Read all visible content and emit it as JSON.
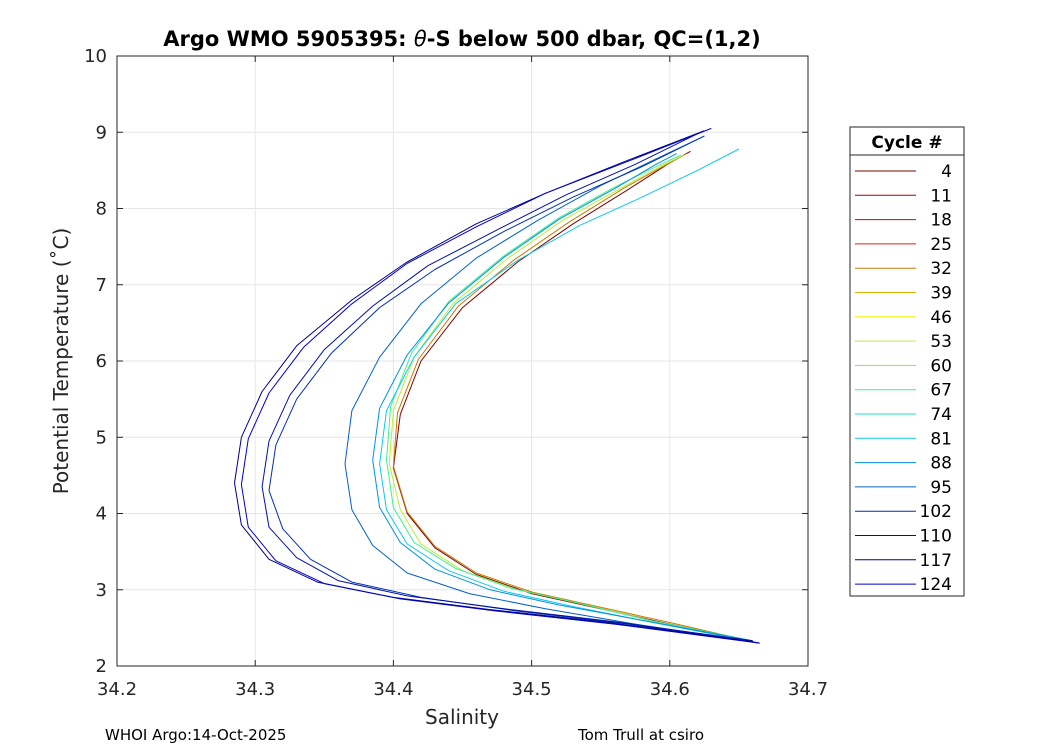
{
  "chart_data": {
    "type": "line",
    "title_prefix": "Argo WMO 5905395: ",
    "title_theta": "θ",
    "title_suffix": "-S below 500 dbar,  QC=(1,2)",
    "xlabel": "Salinity",
    "ylabel": "Potential Temperature (˚C)",
    "xlim": [
      34.2,
      34.7
    ],
    "ylim": [
      2,
      10
    ],
    "xticks": [
      "34.2",
      "34.3",
      "34.4",
      "34.5",
      "34.6",
      "34.7"
    ],
    "yticks": [
      "2",
      "3",
      "4",
      "5",
      "6",
      "7",
      "8",
      "9",
      "10"
    ],
    "grid": true,
    "legend": {
      "title": "Cycle #",
      "position": "right-outside",
      "entries": [
        {
          "label": "4",
          "color": "#800000"
        },
        {
          "label": "11",
          "color": "#a80000"
        },
        {
          "label": "18",
          "color": "#d00000"
        },
        {
          "label": "25",
          "color": "#f01010"
        },
        {
          "label": "32",
          "color": "#c87800"
        },
        {
          "label": "39",
          "color": "#e0b000"
        },
        {
          "label": "46",
          "color": "#f0f000"
        },
        {
          "label": "53",
          "color": "#b8f030"
        },
        {
          "label": "60",
          "color": "#70f050"
        },
        {
          "label": "67",
          "color": "#40f090"
        },
        {
          "label": "74",
          "color": "#20e0c0"
        },
        {
          "label": "81",
          "color": "#10c8f0"
        },
        {
          "label": "88",
          "color": "#0090e0"
        },
        {
          "label": "95",
          "color": "#0060c8"
        },
        {
          "label": "102",
          "color": "#0030b0"
        },
        {
          "label": "110",
          "color": "#0010a0"
        },
        {
          "label": "117",
          "color": "#000088"
        },
        {
          "label": "124",
          "color": "#0000c8"
        }
      ]
    },
    "series": [
      {
        "name": "4",
        "color": "#800000",
        "salinity": [
          34.665,
          34.6,
          34.55,
          34.5,
          34.46,
          34.43,
          34.41,
          34.4,
          34.405,
          34.42,
          34.45,
          34.49,
          34.53,
          34.57,
          34.6,
          34.615
        ],
        "theta": [
          2.3,
          2.55,
          2.75,
          2.95,
          3.2,
          3.55,
          4.0,
          4.6,
          5.3,
          6.0,
          6.7,
          7.3,
          7.8,
          8.25,
          8.6,
          8.75
        ]
      },
      {
        "name": "32",
        "color": "#c87800",
        "salinity": [
          34.66,
          34.6,
          34.55,
          34.5,
          34.46,
          34.43,
          34.41,
          34.4,
          34.403,
          34.418,
          34.447,
          34.487,
          34.527,
          34.567,
          34.598,
          34.612
        ],
        "theta": [
          2.32,
          2.57,
          2.77,
          2.97,
          3.22,
          3.57,
          4.02,
          4.62,
          5.32,
          6.02,
          6.72,
          7.32,
          7.82,
          8.27,
          8.58,
          8.72
        ]
      },
      {
        "name": "53",
        "color": "#b8f030",
        "salinity": [
          34.66,
          34.59,
          34.54,
          34.49,
          34.45,
          34.42,
          34.405,
          34.397,
          34.4,
          34.415,
          34.443,
          34.483,
          34.523,
          34.563,
          34.593,
          34.61
        ],
        "theta": [
          2.32,
          2.58,
          2.8,
          3.0,
          3.25,
          3.6,
          4.05,
          4.65,
          5.35,
          6.05,
          6.75,
          7.35,
          7.85,
          8.25,
          8.55,
          8.7
        ]
      },
      {
        "name": "67",
        "color": "#40f090",
        "salinity": [
          34.66,
          34.585,
          34.535,
          34.485,
          34.445,
          34.415,
          34.4,
          34.395,
          34.398,
          34.413,
          34.44,
          34.48,
          34.52,
          34.56,
          34.59,
          34.608
        ],
        "theta": [
          2.33,
          2.6,
          2.82,
          3.02,
          3.28,
          3.62,
          4.08,
          4.7,
          5.4,
          6.1,
          6.78,
          7.38,
          7.88,
          8.28,
          8.55,
          8.7
        ]
      },
      {
        "name": "81",
        "color": "#10c8f0",
        "salinity": [
          34.665,
          34.585,
          34.53,
          34.48,
          34.44,
          34.41,
          34.395,
          34.39,
          34.395,
          34.415,
          34.445,
          34.49,
          34.535,
          34.58,
          34.62,
          34.65
        ],
        "theta": [
          2.3,
          2.58,
          2.78,
          2.98,
          3.25,
          3.6,
          4.05,
          4.65,
          5.35,
          6.05,
          6.75,
          7.32,
          7.78,
          8.15,
          8.5,
          8.78
        ]
      },
      {
        "name": "88",
        "color": "#0090e0",
        "salinity": [
          34.66,
          34.58,
          34.52,
          34.47,
          34.43,
          34.405,
          34.39,
          34.385,
          34.39,
          34.41,
          34.44,
          34.48,
          34.52,
          34.56,
          34.59,
          34.605
        ],
        "theta": [
          2.33,
          2.6,
          2.8,
          3.0,
          3.27,
          3.62,
          4.08,
          4.7,
          5.38,
          6.08,
          6.76,
          7.36,
          7.86,
          8.26,
          8.58,
          8.72
        ]
      },
      {
        "name": "95",
        "color": "#0060c8",
        "salinity": [
          34.665,
          34.575,
          34.51,
          34.455,
          34.41,
          34.385,
          34.37,
          34.365,
          34.37,
          34.39,
          34.42,
          34.46,
          34.505,
          34.55,
          34.59,
          34.625
        ],
        "theta": [
          2.3,
          2.55,
          2.75,
          2.95,
          3.22,
          3.58,
          4.05,
          4.65,
          5.35,
          6.05,
          6.75,
          7.35,
          7.85,
          8.3,
          8.65,
          8.95
        ]
      },
      {
        "name": "102",
        "color": "#0030b0",
        "salinity": [
          34.665,
          34.57,
          34.49,
          34.42,
          34.37,
          34.34,
          34.32,
          34.31,
          34.315,
          34.33,
          34.355,
          34.39,
          34.43,
          34.48,
          34.53,
          34.58,
          34.625
        ],
        "theta": [
          2.3,
          2.55,
          2.72,
          2.9,
          3.1,
          3.4,
          3.8,
          4.3,
          4.9,
          5.5,
          6.1,
          6.7,
          7.2,
          7.7,
          8.15,
          8.55,
          8.95
        ]
      },
      {
        "name": "110",
        "color": "#0010a0",
        "salinity": [
          34.66,
          34.56,
          34.48,
          34.41,
          34.36,
          34.33,
          34.31,
          34.305,
          34.31,
          34.325,
          34.35,
          34.385,
          34.425,
          34.475,
          34.525,
          34.575,
          34.62
        ],
        "theta": [
          2.33,
          2.58,
          2.75,
          2.92,
          3.12,
          3.42,
          3.82,
          4.35,
          4.95,
          5.55,
          6.15,
          6.72,
          7.25,
          7.72,
          8.18,
          8.58,
          8.98
        ]
      },
      {
        "name": "117",
        "color": "#000088",
        "salinity": [
          34.66,
          34.555,
          34.47,
          34.4,
          34.345,
          34.31,
          34.29,
          34.285,
          34.29,
          34.305,
          34.33,
          34.37,
          34.41,
          34.46,
          34.51,
          34.565,
          34.625
        ],
        "theta": [
          2.32,
          2.57,
          2.74,
          2.9,
          3.1,
          3.4,
          3.85,
          4.4,
          5.0,
          5.6,
          6.2,
          6.8,
          7.3,
          7.8,
          8.2,
          8.6,
          9.02
        ]
      },
      {
        "name": "124",
        "color": "#0000c8",
        "salinity": [
          34.665,
          34.56,
          34.475,
          34.405,
          34.35,
          34.315,
          34.295,
          34.29,
          34.295,
          34.31,
          34.335,
          34.37,
          34.41,
          34.46,
          34.51,
          34.57,
          34.63
        ],
        "theta": [
          2.3,
          2.55,
          2.72,
          2.88,
          3.08,
          3.38,
          3.82,
          4.38,
          4.98,
          5.58,
          6.18,
          6.75,
          7.28,
          7.76,
          8.2,
          8.62,
          9.05
        ]
      }
    ],
    "footer_left": "WHOI Argo:14-Oct-2025",
    "footer_right": "Tom Trull at csiro"
  }
}
